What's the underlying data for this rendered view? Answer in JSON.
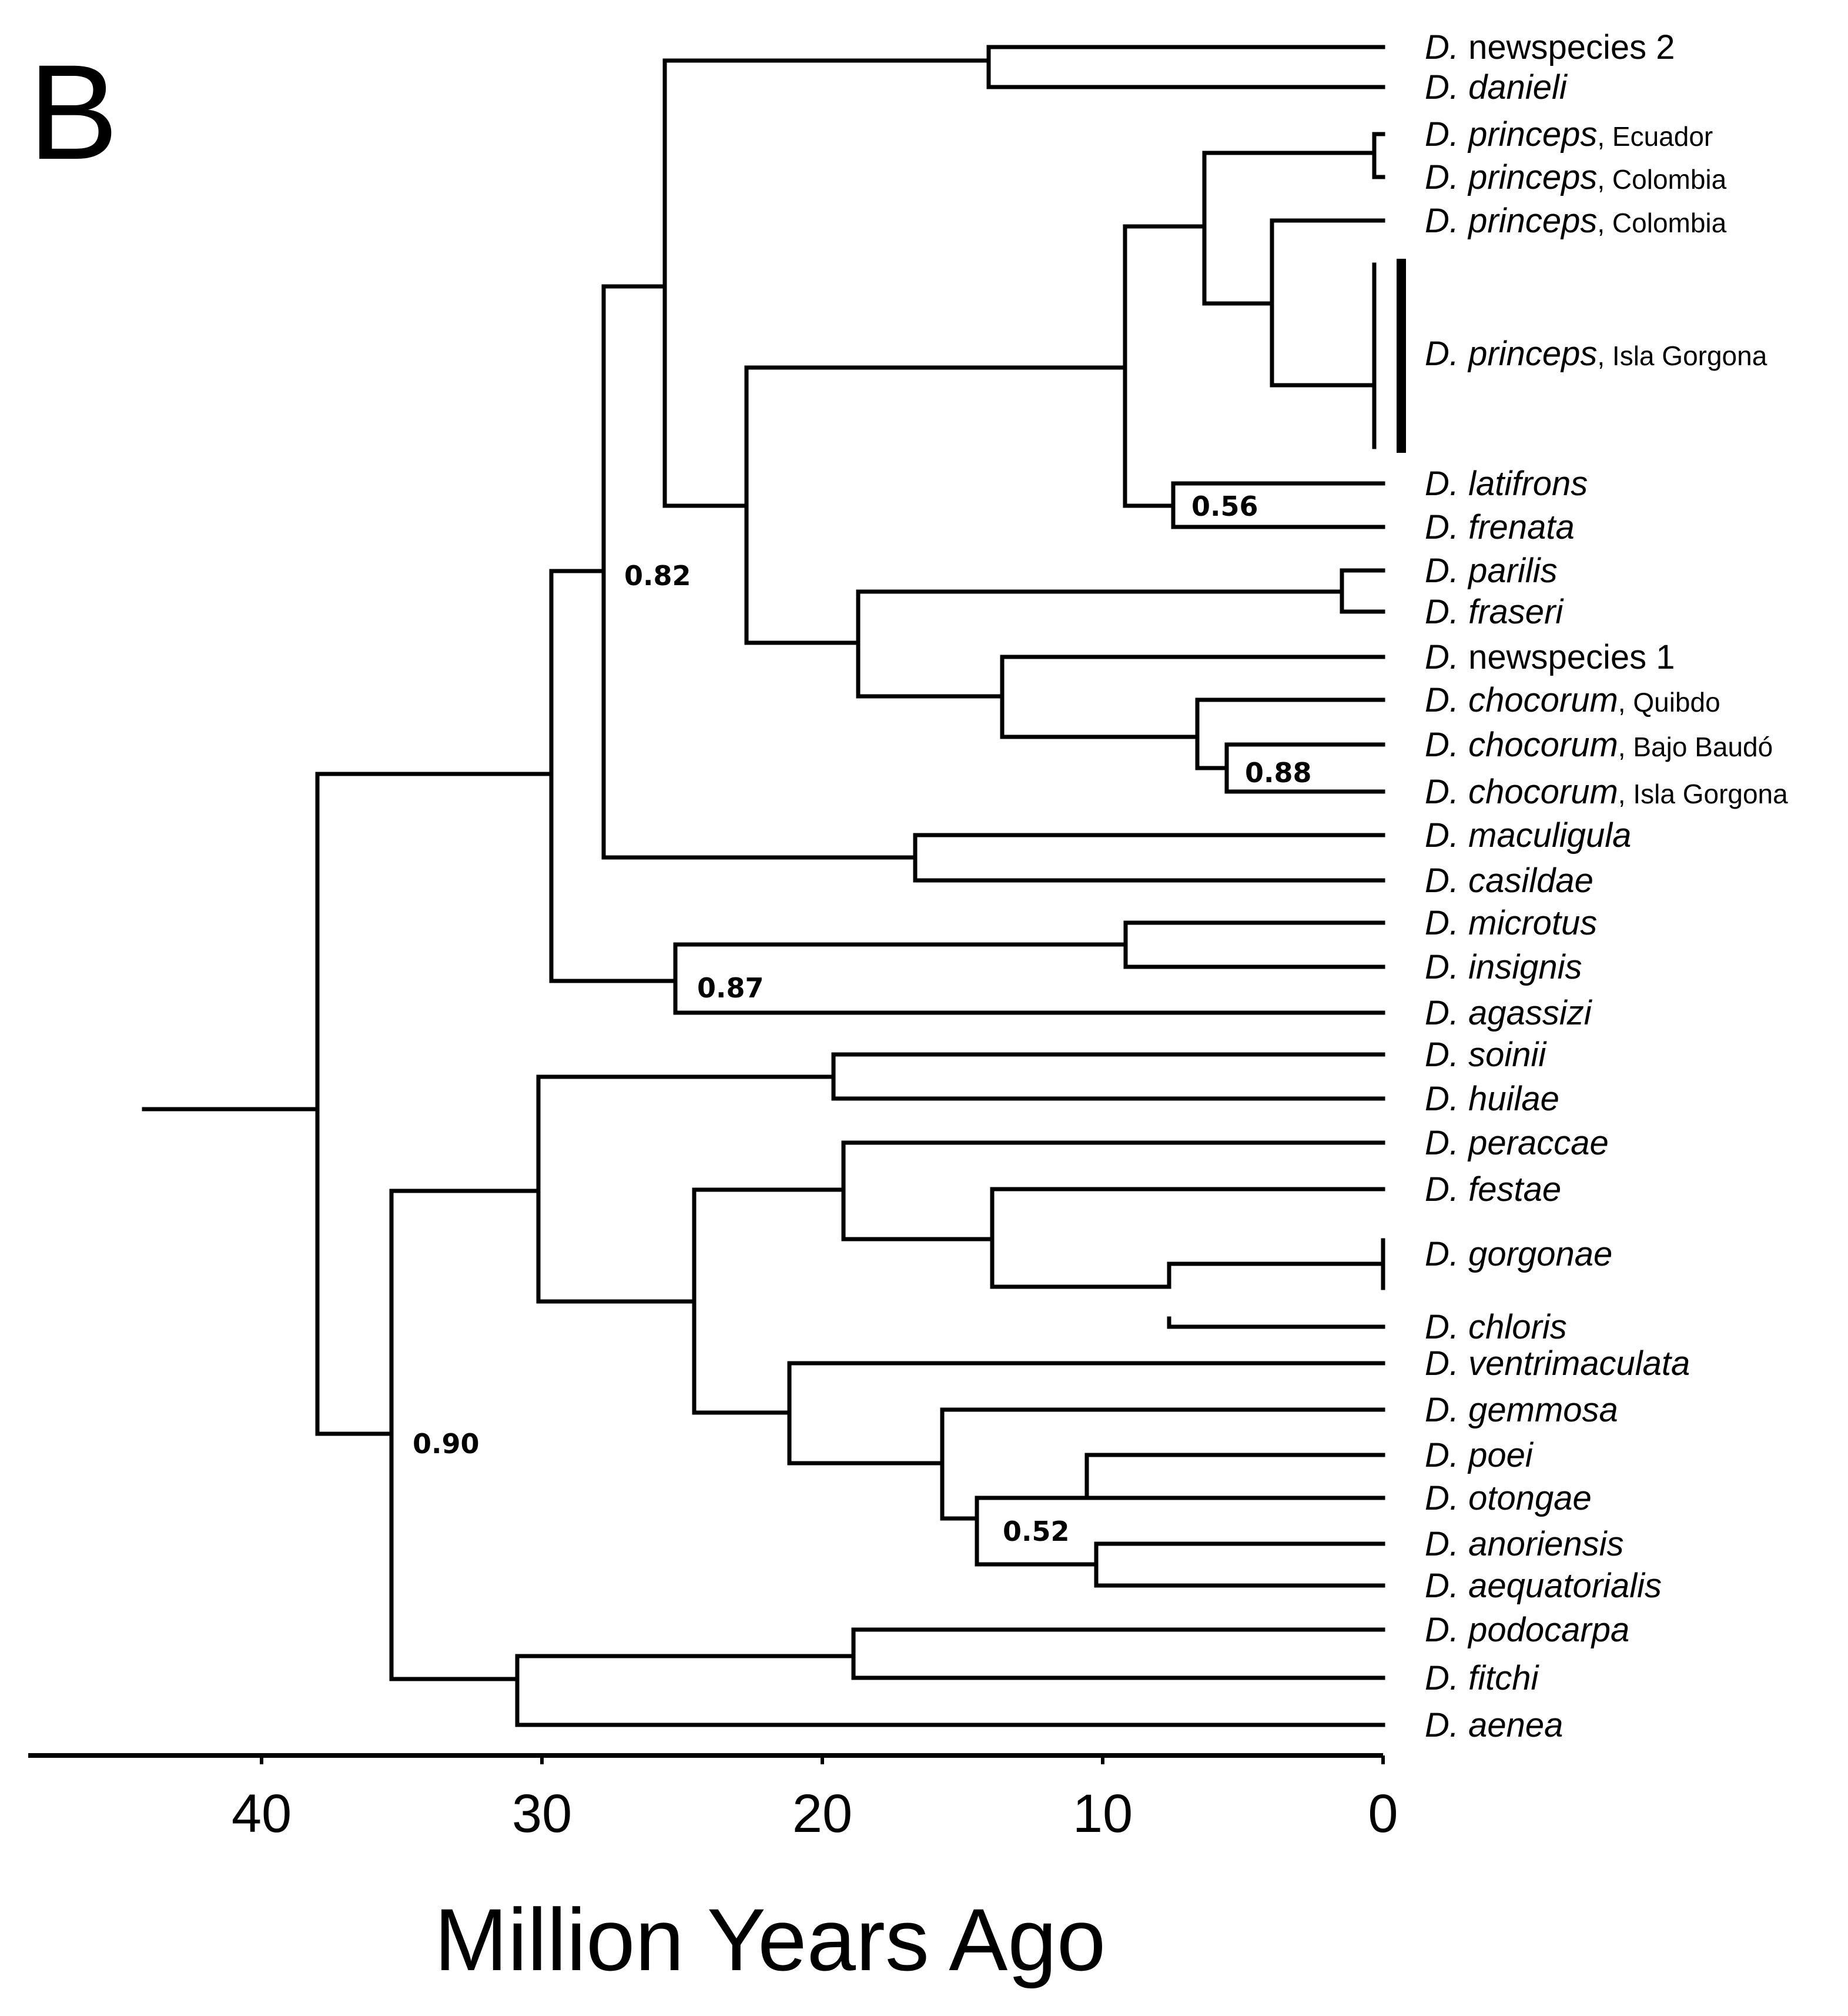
{
  "panel_label": "B",
  "axis": {
    "title": "Million Years Ago",
    "ticks": [
      "40",
      "30",
      "20",
      "10",
      "0"
    ]
  },
  "colors": {
    "default_branch": "#000000",
    "gorgona_princeps": "#f5c542",
    "gorgona_cyan": "#1ee3e3",
    "agassizi_gray": "#a9a1a4"
  },
  "tips": [
    {
      "genus": "D.",
      "species": "newspecies 2",
      "italic": false,
      "locality": ""
    },
    {
      "genus": "D.",
      "species": "danieli",
      "italic": true,
      "locality": ""
    },
    {
      "genus": "D.",
      "species": "princeps",
      "italic": true,
      "locality": ", Ecuador"
    },
    {
      "genus": "D.",
      "species": "princeps",
      "italic": true,
      "locality": ", Colombia"
    },
    {
      "genus": "D.",
      "species": "princeps",
      "italic": true,
      "locality": ", Colombia"
    },
    {
      "genus": "D.",
      "species": "princeps",
      "italic": true,
      "locality": ", Isla Gorgona"
    },
    {
      "genus": "D.",
      "species": "latifrons",
      "italic": true,
      "locality": ""
    },
    {
      "genus": "D.",
      "species": "frenata",
      "italic": true,
      "locality": ""
    },
    {
      "genus": "D.",
      "species": "parilis",
      "italic": true,
      "locality": ""
    },
    {
      "genus": "D.",
      "species": "fraseri",
      "italic": true,
      "locality": ""
    },
    {
      "genus": "D.",
      "species": "newspecies 1",
      "italic": false,
      "locality": ""
    },
    {
      "genus": "D.",
      "species": "chocorum",
      "italic": true,
      "locality": ", Quibdo"
    },
    {
      "genus": "D.",
      "species": "chocorum",
      "italic": true,
      "locality": ", Bajo Baudó"
    },
    {
      "genus": "D.",
      "species": "chocorum",
      "italic": true,
      "locality": ", Isla Gorgona"
    },
    {
      "genus": "D.",
      "species": "maculigula",
      "italic": true,
      "locality": ""
    },
    {
      "genus": "D.",
      "species": "casildae",
      "italic": true,
      "locality": ""
    },
    {
      "genus": "D.",
      "species": "microtus",
      "italic": true,
      "locality": ""
    },
    {
      "genus": "D.",
      "species": "insignis",
      "italic": true,
      "locality": ""
    },
    {
      "genus": "D.",
      "species": "agassizi",
      "italic": true,
      "locality": ""
    },
    {
      "genus": "D.",
      "species": "soinii",
      "italic": true,
      "locality": ""
    },
    {
      "genus": "D.",
      "species": "huilae",
      "italic": true,
      "locality": ""
    },
    {
      "genus": "D.",
      "species": "peraccae",
      "italic": true,
      "locality": ""
    },
    {
      "genus": "D.",
      "species": "festae",
      "italic": true,
      "locality": ""
    },
    {
      "genus": "D.",
      "species": "gorgonae",
      "italic": true,
      "locality": ""
    },
    {
      "genus": "D.",
      "species": "chloris",
      "italic": true,
      "locality": ""
    },
    {
      "genus": "D.",
      "species": "ventrimaculata",
      "italic": true,
      "locality": ""
    },
    {
      "genus": "D.",
      "species": "gemmosa",
      "italic": true,
      "locality": ""
    },
    {
      "genus": "D.",
      "species": "poei",
      "italic": true,
      "locality": ""
    },
    {
      "genus": "D.",
      "species": "otongae",
      "italic": true,
      "locality": ""
    },
    {
      "genus": "D.",
      "species": "anoriensis",
      "italic": true,
      "locality": ""
    },
    {
      "genus": "D.",
      "species": "aequatorialis",
      "italic": true,
      "locality": ""
    },
    {
      "genus": "D.",
      "species": "podocarpa",
      "italic": true,
      "locality": ""
    },
    {
      "genus": "D.",
      "species": "fitchi",
      "italic": true,
      "locality": ""
    },
    {
      "genus": "D.",
      "species": "aenea",
      "italic": true,
      "locality": ""
    }
  ],
  "support_values": [
    "0.82",
    "0.56",
    "0.88",
    "0.87",
    "0.90",
    "0.52"
  ]
}
